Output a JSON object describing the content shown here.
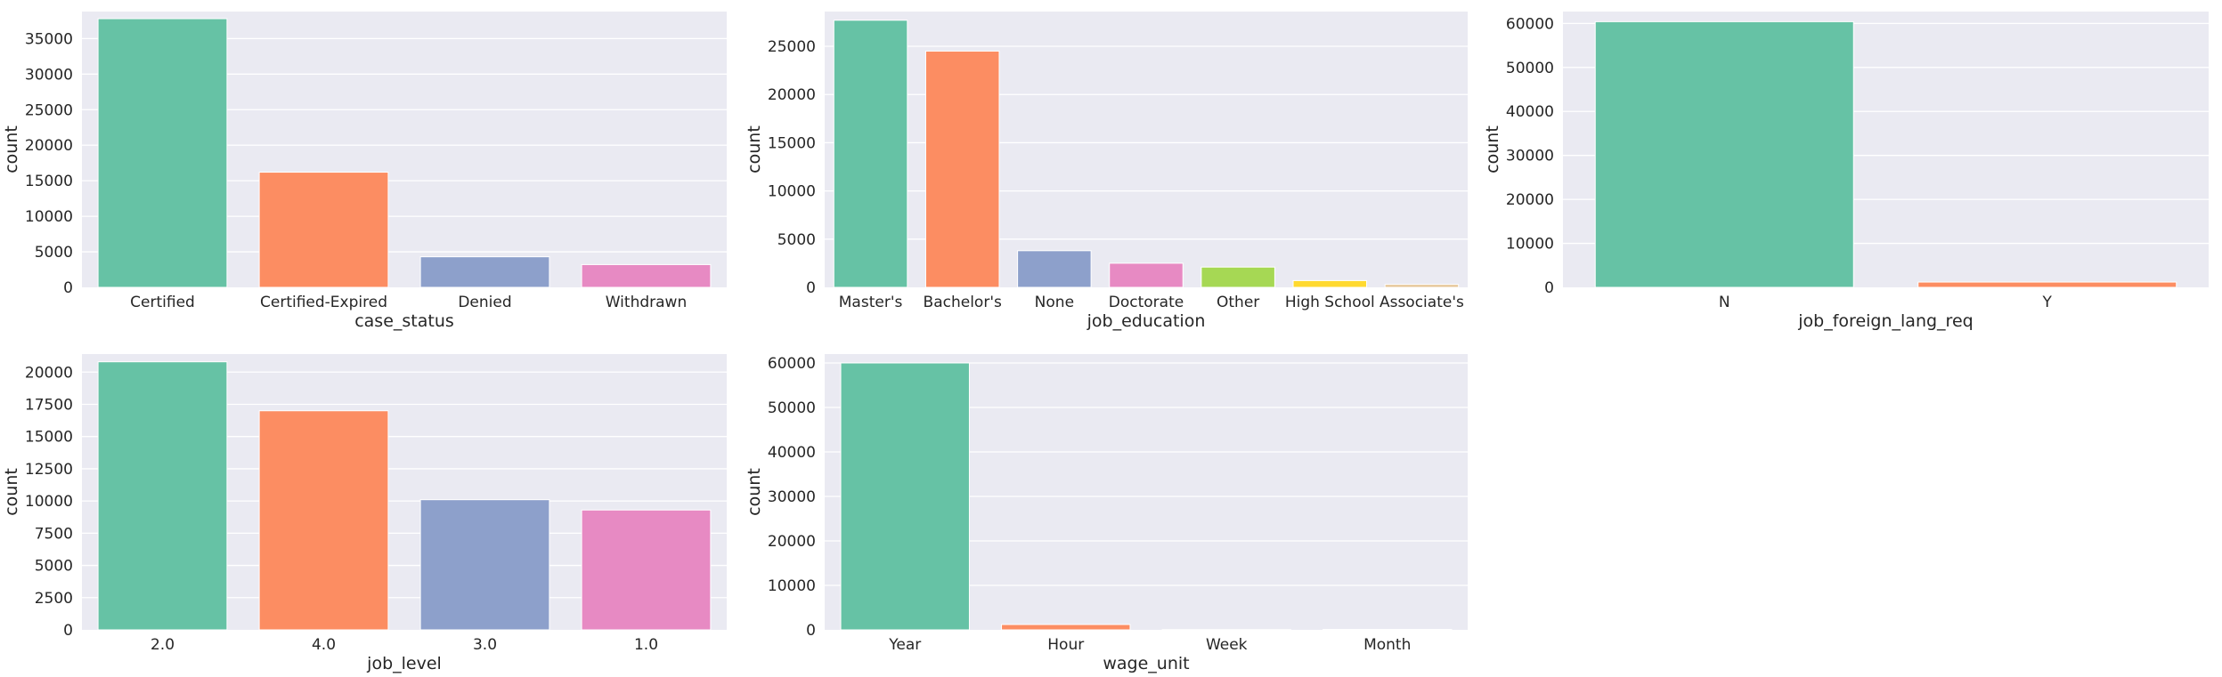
{
  "chart_data": [
    {
      "type": "bar",
      "xlabel": "case_status",
      "ylabel": "count",
      "categories": [
        "Certified",
        "Certified-Expired",
        "Denied",
        "Withdrawn"
      ],
      "values": [
        37800,
        16200,
        4300,
        3200
      ],
      "ylim": [
        0,
        38800
      ],
      "yticks": [
        0,
        5000,
        10000,
        15000,
        20000,
        25000,
        30000,
        35000
      ],
      "grid": true
    },
    {
      "type": "bar",
      "xlabel": "job_education",
      "ylabel": "count",
      "categories": [
        "Master's",
        "Bachelor's",
        "None",
        "Doctorate",
        "Other",
        "High School",
        "Associate's"
      ],
      "values": [
        27700,
        24500,
        3800,
        2500,
        2100,
        700,
        300
      ],
      "ylim": [
        0,
        28600
      ],
      "yticks": [
        0,
        5000,
        10000,
        15000,
        20000,
        25000
      ],
      "grid": true
    },
    {
      "type": "bar",
      "xlabel": "job_foreign_lang_req",
      "ylabel": "count",
      "categories": [
        "N",
        "Y"
      ],
      "values": [
        60400,
        1200
      ],
      "ylim": [
        0,
        62700
      ],
      "yticks": [
        0,
        10000,
        20000,
        30000,
        40000,
        50000,
        60000
      ],
      "grid": true
    },
    {
      "type": "bar",
      "xlabel": "job_level",
      "ylabel": "count",
      "categories": [
        "2.0",
        "4.0",
        "3.0",
        "1.0"
      ],
      "values": [
        20800,
        17000,
        10100,
        9300
      ],
      "ylim": [
        0,
        21400
      ],
      "yticks": [
        0,
        2500,
        5000,
        7500,
        10000,
        12500,
        15000,
        17500,
        20000
      ],
      "grid": true
    },
    {
      "type": "bar",
      "xlabel": "wage_unit",
      "ylabel": "count",
      "categories": [
        "Year",
        "Hour",
        "Week",
        "Month"
      ],
      "values": [
        60000,
        1200,
        50,
        100
      ],
      "ylim": [
        0,
        62000
      ],
      "yticks": [
        0,
        10000,
        20000,
        30000,
        40000,
        50000,
        60000
      ],
      "grid": true
    }
  ],
  "colors": {
    "palette": [
      "#66c2a5",
      "#fc8d62",
      "#8da0cb",
      "#e78ac3",
      "#a6d854",
      "#ffd92f",
      "#e5c494"
    ],
    "axes_background": "#eaeaf2",
    "grid": "#ffffff",
    "text": "#262626"
  }
}
